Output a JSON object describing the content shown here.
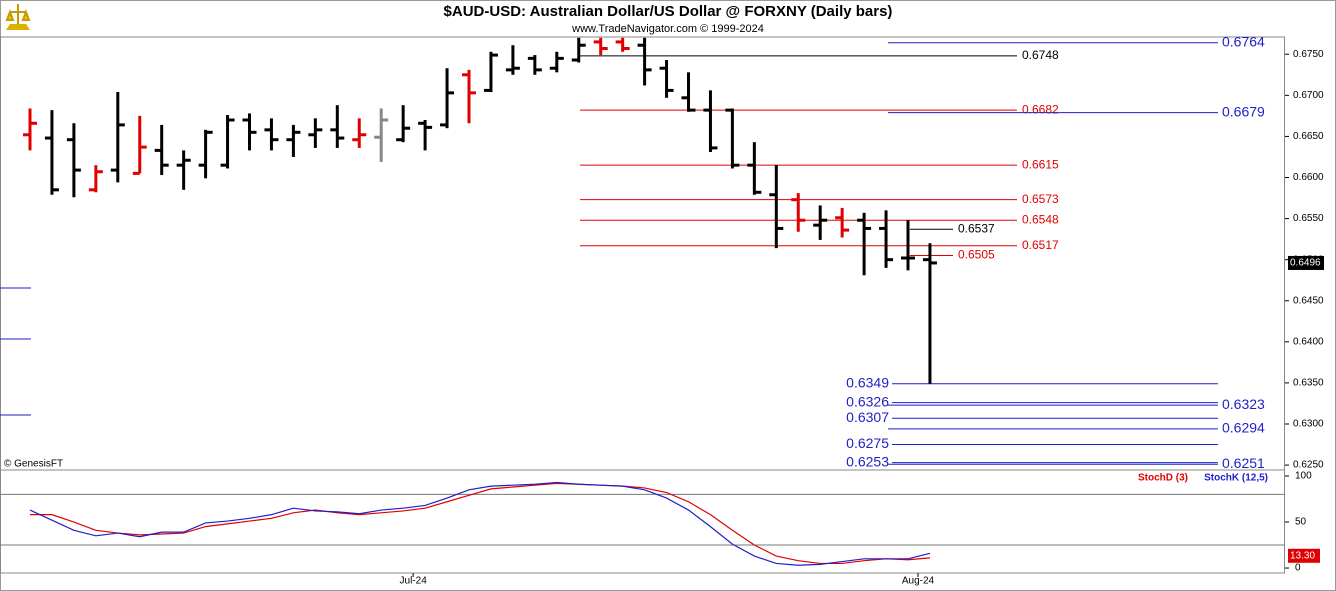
{
  "chart_data": [
    {
      "type": "ohlc",
      "title": "$AUD-USD:  Australian Dollar/US Dollar @ FORXNY  (Daily bars)",
      "subtitle": "www.TradeNavigator.com © 1999-2024",
      "annotation": "© GenesisFT",
      "categories": [
        null,
        null,
        null,
        null,
        null,
        null,
        null,
        null,
        null,
        null,
        null,
        null,
        null,
        null,
        null,
        null,
        null,
        "Jul-24",
        null,
        null,
        null,
        null,
        null,
        null,
        null,
        null,
        null,
        null,
        null,
        null,
        null,
        null,
        null,
        null,
        null,
        null,
        null,
        null,
        null,
        null,
        "Aug-24",
        null
      ],
      "open": [
        0.6652,
        0.6648,
        0.6646,
        0.6585,
        0.6609,
        0.6605,
        0.6633,
        0.6615,
        0.6615,
        0.6615,
        0.667,
        0.6658,
        0.6646,
        0.6652,
        0.6658,
        0.6646,
        0.6649,
        0.6646,
        0.6666,
        0.6664,
        0.6725,
        0.6706,
        0.6731,
        0.6745,
        0.6733,
        0.6743,
        0.6765,
        0.6765,
        0.6761,
        0.6733,
        0.6697,
        0.6682,
        0.6682,
        0.6615,
        0.6579,
        0.6573,
        0.6542,
        0.6551,
        0.6548,
        0.6538,
        0.6502,
        0.65
      ],
      "high": [
        0.6684,
        0.6682,
        0.6666,
        0.6615,
        0.6704,
        0.6675,
        0.6664,
        0.6633,
        0.6658,
        0.6676,
        0.6678,
        0.6672,
        0.6664,
        0.6672,
        0.6688,
        0.6672,
        0.6684,
        0.6688,
        0.667,
        0.6733,
        0.6731,
        0.6753,
        0.6761,
        0.6749,
        0.6753,
        0.677,
        0.677,
        0.677,
        0.677,
        0.6743,
        0.6728,
        0.6706,
        0.6684,
        0.6643,
        0.6615,
        0.6581,
        0.6566,
        0.6563,
        0.6557,
        0.656,
        0.6548,
        0.652
      ],
      "low": [
        0.6633,
        0.6579,
        0.6576,
        0.6582,
        0.6594,
        0.6605,
        0.6603,
        0.6585,
        0.6599,
        0.6611,
        0.6633,
        0.6633,
        0.6625,
        0.6636,
        0.6636,
        0.6636,
        0.6619,
        0.6643,
        0.6633,
        0.666,
        0.6666,
        0.6704,
        0.6725,
        0.6725,
        0.6728,
        0.674,
        0.6749,
        0.6753,
        0.6712,
        0.6697,
        0.668,
        0.6631,
        0.6611,
        0.6579,
        0.6514,
        0.6534,
        0.6524,
        0.6527,
        0.6481,
        0.649,
        0.6487,
        0.6349
      ],
      "close": [
        0.6666,
        0.6585,
        0.6609,
        0.6607,
        0.6664,
        0.6637,
        0.6615,
        0.6621,
        0.6655,
        0.667,
        0.6655,
        0.6646,
        0.6655,
        0.6658,
        0.6648,
        0.6652,
        0.667,
        0.666,
        0.6661,
        0.6703,
        0.6703,
        0.6749,
        0.6733,
        0.6731,
        0.6745,
        0.6761,
        0.6757,
        0.6757,
        0.6731,
        0.6706,
        0.6682,
        0.6636,
        0.6615,
        0.6582,
        0.6538,
        0.6548,
        0.6548,
        0.6536,
        0.6538,
        0.65,
        0.6502,
        0.6496
      ],
      "bar_colors": [
        "#e00000",
        "#000",
        "#000",
        "#e00000",
        "#000",
        "#e00000",
        "#000",
        "#000",
        "#000",
        "#000",
        "#000",
        "#000",
        "#000",
        "#000",
        "#000",
        "#e00000",
        "#888",
        "#000",
        "#000",
        "#000",
        "#e00000",
        "#000",
        "#000",
        "#000",
        "#000",
        "#000",
        "#e00000",
        "#e00000",
        "#000",
        "#000",
        "#000",
        "#000",
        "#000",
        "#000",
        "#000",
        "#e00000",
        "#000",
        "#e00000",
        "#000",
        "#000",
        "#000",
        "#000"
      ],
      "ylim": [
        0.6244,
        0.6771
      ],
      "yticks": [
        {
          "value": 0.625,
          "label": "0.6250"
        },
        {
          "value": 0.63,
          "label": "0.6300"
        },
        {
          "value": 0.635,
          "label": "0.6350"
        },
        {
          "value": 0.64,
          "label": "0.6400"
        },
        {
          "value": 0.645,
          "label": "0.6450"
        },
        {
          "value": 0.65,
          "label": "0.6500"
        },
        {
          "value": 0.655,
          "label": "0.6550"
        },
        {
          "value": 0.66,
          "label": "0.6600"
        },
        {
          "value": 0.665,
          "label": "0.6650"
        },
        {
          "value": 0.67,
          "label": "0.6700"
        },
        {
          "value": 0.675,
          "label": "0.6750"
        }
      ],
      "last": 0.6496,
      "levels": [
        {
          "value": 0.6764,
          "color": "#1f1fc8",
          "style": "right"
        },
        {
          "value": 0.6748,
          "color": "#000",
          "style": "long"
        },
        {
          "value": 0.6682,
          "color": "#e00000",
          "style": "long"
        },
        {
          "value": 0.6679,
          "color": "#1f1fc8",
          "style": "right"
        },
        {
          "value": 0.6615,
          "color": "#e00000",
          "style": "long"
        },
        {
          "value": 0.6573,
          "color": "#e00000",
          "style": "long"
        },
        {
          "value": 0.6548,
          "color": "#e00000",
          "style": "long"
        },
        {
          "value": 0.6537,
          "color": "#000",
          "style": "short"
        },
        {
          "value": 0.6517,
          "color": "#e00000",
          "style": "long"
        },
        {
          "value": 0.6505,
          "color": "#e00000",
          "style": "short"
        },
        {
          "value": 0.6349,
          "color": "#1f1fc8",
          "style": "left"
        },
        {
          "value": 0.6326,
          "color": "#1f1fc8",
          "style": "left"
        },
        {
          "value": 0.6323,
          "color": "#1f1fc8",
          "style": "right"
        },
        {
          "value": 0.6307,
          "color": "#1f1fc8",
          "style": "left"
        },
        {
          "value": 0.6294,
          "color": "#1f1fc8",
          "style": "right"
        },
        {
          "value": 0.6275,
          "color": "#1f1fc8",
          "style": "left"
        },
        {
          "value": 0.6253,
          "color": "#1f1fc8",
          "style": "left"
        },
        {
          "value": 0.6251,
          "color": "#1f1fc8",
          "style": "right"
        }
      ]
    },
    {
      "type": "line",
      "series": [
        {
          "name": "StochD (3)",
          "color": "#e00000",
          "values": [
            58,
            58,
            50,
            41,
            38,
            36,
            37,
            38,
            45,
            48,
            51,
            54,
            60,
            63,
            60,
            58,
            60,
            62,
            65,
            72,
            79,
            86,
            88,
            90,
            92,
            91,
            90,
            89,
            87,
            82,
            72,
            58,
            41,
            25,
            13,
            8,
            5,
            5,
            8,
            10,
            9,
            11
          ]
        },
        {
          "name": "StochK (12,5)",
          "color": "#1f1fc8",
          "values": [
            63,
            52,
            41,
            35,
            38,
            34,
            39,
            39,
            49,
            51,
            54,
            58,
            65,
            62,
            61,
            59,
            63,
            65,
            68,
            76,
            85,
            89,
            90,
            91,
            93,
            91,
            90,
            89,
            85,
            76,
            63,
            45,
            26,
            13,
            5,
            3,
            4,
            7,
            10,
            10,
            10,
            16
          ]
        }
      ],
      "ylim": [
        -5.4,
        106.5
      ],
      "yticks": [
        0,
        50,
        100
      ],
      "bands": [
        80,
        25
      ],
      "last": 13.3,
      "last_label": "13.30"
    }
  ]
}
